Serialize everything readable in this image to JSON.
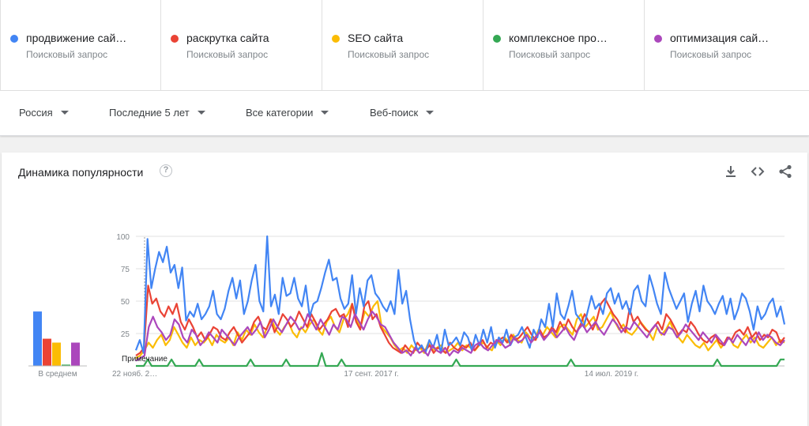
{
  "terms": [
    {
      "label": "продвижение сай…",
      "sub": "Поисковый запрос",
      "color": "#4285f4"
    },
    {
      "label": "раскрутка сайта",
      "sub": "Поисковый запрос",
      "color": "#ea4335"
    },
    {
      "label": "SEO сайта",
      "sub": "Поисковый запрос",
      "color": "#fbbc04"
    },
    {
      "label": "комплексное про…",
      "sub": "Поисковый запрос",
      "color": "#34a853"
    },
    {
      "label": "оптимизация сай…",
      "sub": "Поисковый запрос",
      "color": "#ab47bc"
    }
  ],
  "filters": {
    "region": "Россия",
    "period": "Последние 5 лет",
    "category": "Все категории",
    "search_type": "Веб-поиск"
  },
  "card": {
    "title": "Динамика популярности",
    "help_icon": "question-icon",
    "download_icon": "download-icon",
    "embed_icon": "embed-code-icon",
    "share_icon": "share-icon"
  },
  "chart_data": {
    "type": "line",
    "ylim": [
      0,
      100
    ],
    "yticks": [
      25,
      50,
      75,
      100
    ],
    "grid": true,
    "xtick_labels": [
      "22 нояб. 2…",
      "17 сент. 2017 г.",
      "14 июл. 2019 г."
    ],
    "note_label": "Примечание",
    "averages_label": "В среднем",
    "averages": [
      {
        "series": "продвижение сай…",
        "value": 42
      },
      {
        "series": "раскрутка сайта",
        "value": 21
      },
      {
        "series": "SEO сайта",
        "value": 18
      },
      {
        "series": "комплексное про…",
        "value": 1
      },
      {
        "series": "оптимизация сай…",
        "value": 18
      }
    ],
    "series": [
      {
        "term_index": 0,
        "color": "#4285f4",
        "values": [
          12,
          20,
          10,
          98,
          60,
          75,
          88,
          80,
          92,
          72,
          78,
          60,
          76,
          35,
          42,
          38,
          48,
          36,
          40,
          46,
          58,
          40,
          36,
          44,
          58,
          68,
          52,
          66,
          40,
          50,
          66,
          78,
          50,
          42,
          100,
          46,
          55,
          40,
          68,
          54,
          56,
          68,
          52,
          46,
          62,
          38,
          48,
          50,
          60,
          72,
          82,
          66,
          68,
          52,
          44,
          48,
          70,
          40,
          60,
          46,
          66,
          70,
          56,
          52,
          46,
          42,
          50,
          40,
          74,
          48,
          58,
          36,
          20,
          12,
          16,
          10,
          20,
          14,
          24,
          10,
          28,
          16,
          18,
          22,
          16,
          26,
          22,
          12,
          24,
          16,
          28,
          18,
          30,
          14,
          22,
          18,
          28,
          16,
          22,
          24,
          30,
          22,
          14,
          28,
          22,
          36,
          30,
          48,
          30,
          56,
          40,
          36,
          46,
          58,
          40,
          36,
          30,
          42,
          54,
          44,
          48,
          40,
          56,
          60,
          48,
          56,
          44,
          50,
          40,
          58,
          62,
          50,
          46,
          70,
          60,
          48,
          40,
          72,
          60,
          52,
          44,
          50,
          56,
          34,
          48,
          58,
          42,
          62,
          50,
          46,
          40,
          48,
          54,
          40,
          52,
          36,
          44,
          56,
          52,
          42,
          28,
          46,
          36,
          40,
          48,
          52,
          38,
          46,
          32
        ]
      },
      {
        "term_index": 1,
        "color": "#ea4335",
        "values": [
          8,
          10,
          14,
          62,
          48,
          52,
          42,
          38,
          46,
          40,
          48,
          34,
          28,
          36,
          30,
          22,
          26,
          20,
          24,
          30,
          28,
          22,
          20,
          26,
          30,
          24,
          18,
          22,
          26,
          34,
          38,
          30,
          28,
          36,
          26,
          32,
          40,
          36,
          30,
          34,
          42,
          36,
          30,
          40,
          34,
          28,
          32,
          36,
          42,
          44,
          38,
          40,
          30,
          48,
          34,
          28,
          46,
          50,
          36,
          40,
          30,
          24,
          18,
          14,
          12,
          10,
          16,
          12,
          10,
          18,
          14,
          12,
          16,
          10,
          14,
          12,
          10,
          18,
          14,
          12,
          16,
          14,
          18,
          12,
          16,
          20,
          14,
          18,
          16,
          20,
          22,
          18,
          24,
          20,
          22,
          26,
          30,
          24,
          20,
          28,
          22,
          24,
          30,
          26,
          34,
          28,
          36,
          30,
          26,
          32,
          40,
          34,
          28,
          36,
          48,
          52,
          46,
          40,
          36,
          30,
          26,
          44,
          34,
          38,
          32,
          28,
          26,
          30,
          34,
          28,
          40,
          36,
          30,
          24,
          28,
          26,
          34,
          30,
          24,
          20,
          18,
          22,
          24,
          18,
          16,
          22,
          20,
          26,
          28,
          24,
          30,
          22,
          26,
          20,
          24,
          22,
          28,
          26,
          18,
          22
        ]
      },
      {
        "term_index": 2,
        "color": "#fbbc04",
        "values": [
          6,
          8,
          12,
          18,
          14,
          20,
          24,
          16,
          20,
          30,
          24,
          18,
          14,
          22,
          16,
          20,
          18,
          22,
          16,
          24,
          20,
          18,
          22,
          16,
          26,
          20,
          28,
          24,
          32,
          26,
          22,
          30,
          36,
          28,
          24,
          30,
          34,
          26,
          22,
          30,
          26,
          32,
          36,
          28,
          24,
          34,
          38,
          30,
          26,
          36,
          40,
          48,
          36,
          30,
          42,
          38,
          46,
          50,
          30,
          26,
          22,
          16,
          12,
          14,
          10,
          16,
          12,
          14,
          10,
          18,
          12,
          14,
          16,
          10,
          12,
          14,
          18,
          12,
          16,
          14,
          12,
          16,
          18,
          14,
          12,
          20,
          16,
          22,
          18,
          24,
          20,
          18,
          26,
          22,
          20,
          28,
          24,
          30,
          26,
          22,
          30,
          32,
          28,
          24,
          36,
          40,
          30,
          34,
          38,
          28,
          30,
          36,
          42,
          34,
          28,
          32,
          26,
          24,
          28,
          34,
          30,
          26,
          20,
          30,
          24,
          28,
          34,
          26,
          22,
          18,
          24,
          20,
          16,
          14,
          18,
          12,
          16,
          20,
          14,
          18,
          22,
          16,
          14,
          20,
          24,
          18,
          22,
          16,
          14,
          18,
          22,
          16,
          20,
          18
        ]
      },
      {
        "term_index": 3,
        "color": "#34a853",
        "values": [
          0,
          0,
          0,
          5,
          0,
          0,
          0,
          0,
          0,
          5,
          0,
          0,
          0,
          0,
          0,
          0,
          5,
          0,
          0,
          0,
          0,
          0,
          0,
          0,
          0,
          0,
          0,
          0,
          0,
          5,
          0,
          0,
          0,
          0,
          0,
          0,
          0,
          0,
          5,
          0,
          0,
          0,
          0,
          0,
          0,
          0,
          0,
          10,
          0,
          0,
          0,
          0,
          5,
          0,
          0,
          0,
          0,
          0,
          0,
          0,
          0,
          0,
          0,
          0,
          0,
          0,
          0,
          0,
          0,
          0,
          0,
          0,
          0,
          0,
          0,
          0,
          0,
          0,
          0,
          0,
          0,
          5,
          0,
          0,
          0,
          0,
          0,
          0,
          0,
          0,
          0,
          0,
          0,
          0,
          0,
          0,
          0,
          0,
          0,
          0,
          0,
          0,
          0,
          0,
          0,
          0,
          0,
          0,
          0,
          0,
          5,
          0,
          0,
          0,
          0,
          0,
          0,
          0,
          0,
          0,
          0,
          0,
          0,
          0,
          0,
          0,
          0,
          0,
          0,
          0,
          0,
          0,
          0,
          0,
          0,
          0,
          0,
          0,
          0,
          0,
          0,
          0,
          0,
          0,
          0,
          0,
          0,
          5,
          0,
          0,
          0,
          0,
          0,
          0,
          0,
          0,
          0,
          0,
          0,
          0,
          0,
          0,
          0,
          5,
          5
        ]
      },
      {
        "term_index": 4,
        "color": "#ab47bc",
        "values": [
          4,
          6,
          8,
          30,
          38,
          30,
          26,
          20,
          24,
          36,
          32,
          22,
          18,
          28,
          24,
          16,
          20,
          26,
          22,
          18,
          28,
          24,
          20,
          16,
          22,
          26,
          30,
          24,
          28,
          34,
          22,
          28,
          36,
          30,
          26,
          32,
          38,
          34,
          28,
          30,
          40,
          34,
          28,
          36,
          30,
          24,
          32,
          28,
          38,
          36,
          30,
          40,
          34,
          28,
          36,
          42,
          38,
          32,
          30,
          24,
          18,
          14,
          10,
          12,
          8,
          14,
          10,
          12,
          8,
          16,
          12,
          10,
          14,
          8,
          12,
          10,
          14,
          12,
          10,
          16,
          18,
          14,
          12,
          16,
          20,
          18,
          14,
          16,
          22,
          18,
          20,
          24,
          18,
          22,
          26,
          20,
          24,
          28,
          22,
          26,
          30,
          24,
          20,
          28,
          32,
          26,
          30,
          34,
          28,
          24,
          30,
          36,
          32,
          26,
          30,
          28,
          34,
          30,
          26,
          22,
          28,
          32,
          26,
          24,
          30,
          28,
          22,
          26,
          32,
          28,
          24,
          20,
          26,
          22,
          18,
          24,
          20,
          16,
          22,
          18,
          24,
          20,
          16,
          22,
          18,
          26,
          20,
          24,
          22,
          18,
          16,
          20
        ]
      }
    ]
  }
}
